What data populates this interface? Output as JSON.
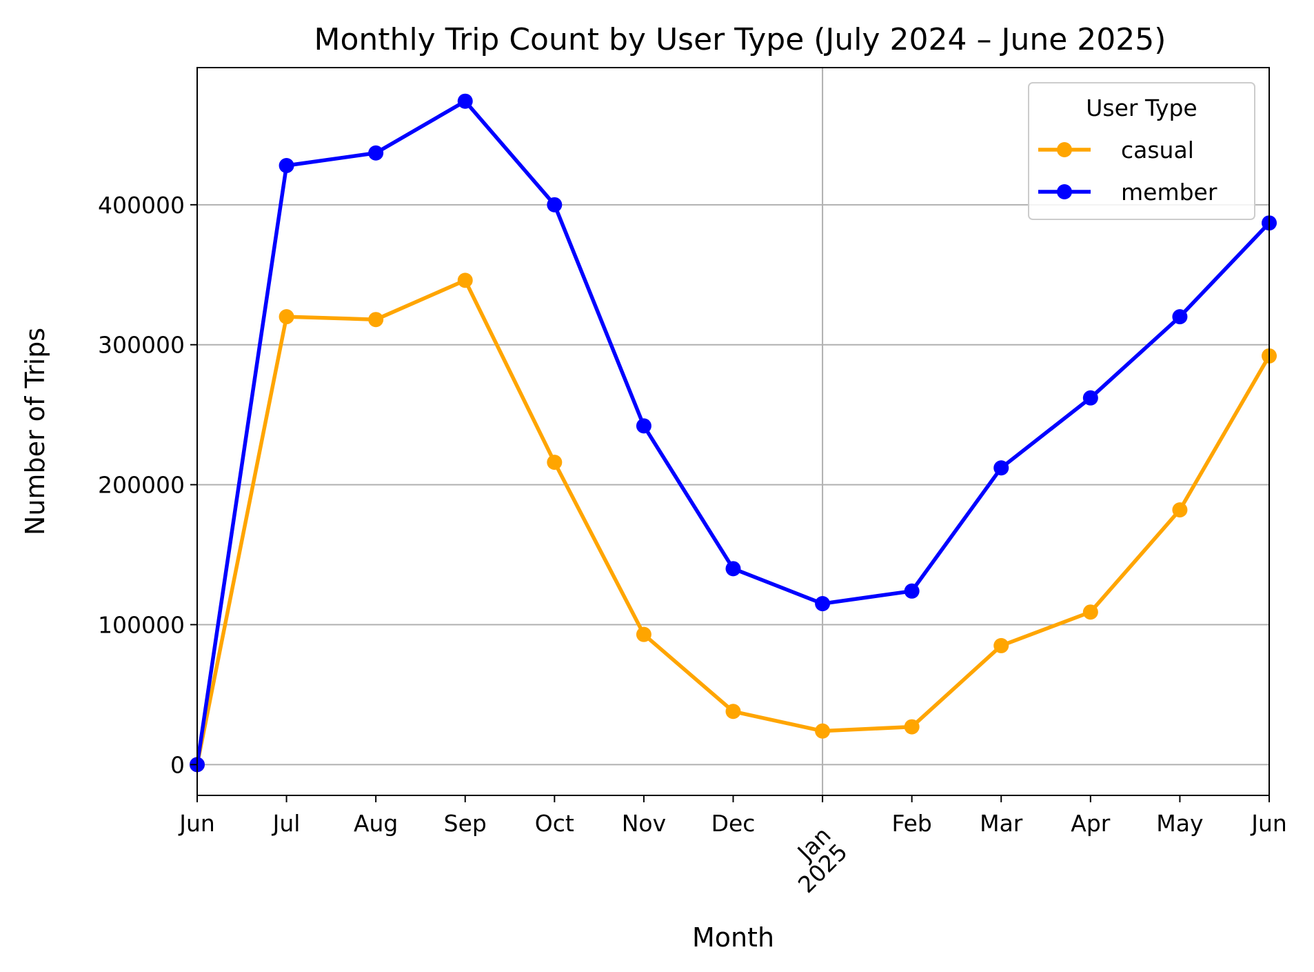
{
  "chart_data": {
    "type": "line",
    "title": "Monthly Trip Count by User Type (July 2024 – June 2025)",
    "xlabel": "Month",
    "ylabel": "Number of Trips",
    "x": [
      "Jun",
      "Jul",
      "Aug",
      "Sep",
      "Oct",
      "Nov",
      "Dec",
      "Jan",
      "Feb",
      "Mar",
      "Apr",
      "May",
      "Jun"
    ],
    "x_tick_labels": [
      "Jun",
      "Jul",
      "Aug",
      "Sep",
      "Oct",
      "Nov",
      "Dec",
      "Jan\n2025",
      "Feb",
      "Mar",
      "Apr",
      "May",
      "Jun"
    ],
    "ylim": [
      -22000,
      498000
    ],
    "y_ticks": [
      0,
      100000,
      200000,
      300000,
      400000
    ],
    "grid": true,
    "legend": {
      "title": "User Type",
      "placement": "upper right"
    },
    "series": [
      {
        "name": "casual",
        "color": "#FFA500",
        "values": [
          0,
          320000,
          318000,
          346000,
          216000,
          93000,
          38000,
          24000,
          27000,
          85000,
          109000,
          182000,
          292000
        ]
      },
      {
        "name": "member",
        "color": "#0000FF",
        "values": [
          0,
          428000,
          437000,
          474000,
          400000,
          242000,
          140000,
          115000,
          124000,
          212000,
          262000,
          320000,
          387000
        ]
      }
    ]
  }
}
